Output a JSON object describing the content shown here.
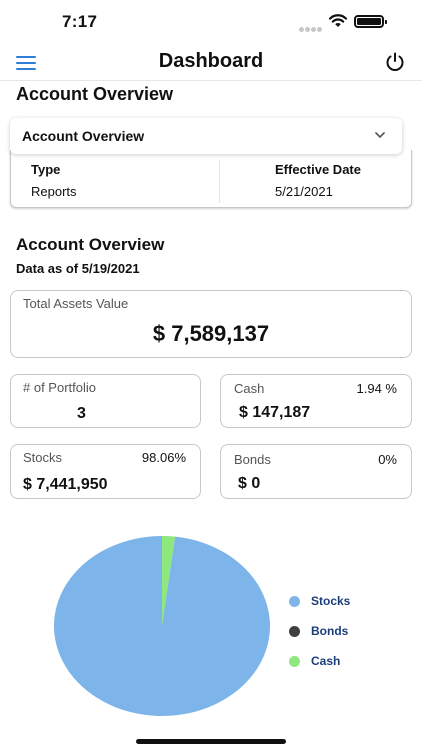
{
  "status_bar": {
    "time": "7:17"
  },
  "nav": {
    "title": "Dashboard"
  },
  "section_title": "Account Overview",
  "dropdown": {
    "selected": "Account Overview"
  },
  "type_table": {
    "col1_header": "Type",
    "col1_value": "Reports",
    "col2_header": "Effective Date",
    "col2_value": "5/21/2021"
  },
  "overview": {
    "title": "Account Overview",
    "as_of": "Data as of 5/19/2021",
    "total_assets": {
      "label": "Total Assets Value",
      "value": "$ 7,589,137"
    },
    "portfolio": {
      "label": "# of Portfolio",
      "value": "3"
    },
    "cash": {
      "label": "Cash",
      "percent": "1.94 %",
      "value": "$ 147,187"
    },
    "stocks": {
      "label": "Stocks",
      "percent": "98.06%",
      "value": "$ 7,441,950"
    },
    "bonds": {
      "label": "Bonds",
      "percent": "0%",
      "value": "$ 0"
    }
  },
  "chart_data": {
    "type": "pie",
    "title": "",
    "categories": [
      "Stocks",
      "Bonds",
      "Cash"
    ],
    "values": [
      98.06,
      0,
      1.94
    ],
    "colors": [
      "#7db5ea",
      "#3f3f3f",
      "#8fe87e"
    ],
    "legend": [
      "Stocks",
      "Bonds",
      "Cash"
    ],
    "legend_position": "right"
  },
  "colors": {
    "accent": "#2f7fd8",
    "legend_text": "#1c3d7a"
  }
}
